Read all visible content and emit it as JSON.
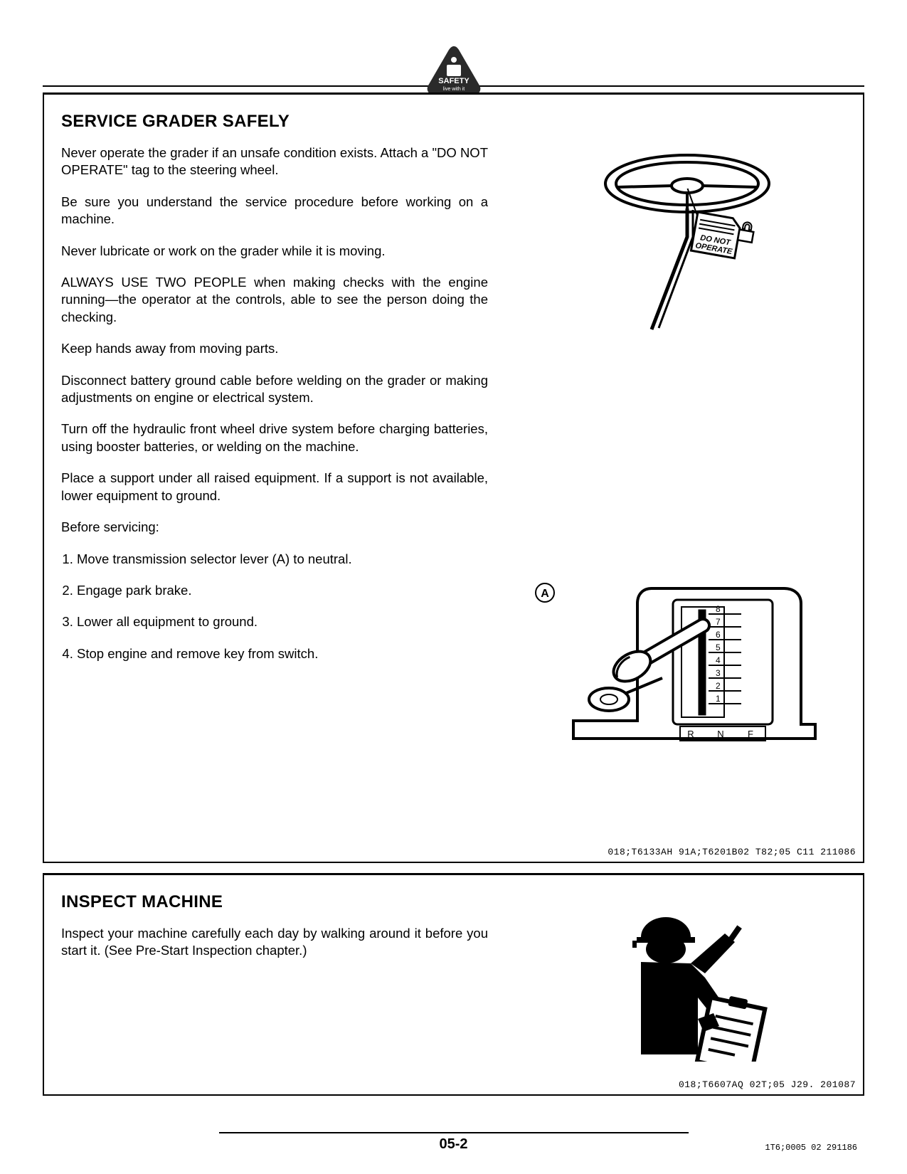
{
  "header": {
    "badge_label_top": "SAFETY",
    "badge_label_bottom": "live with it"
  },
  "section1": {
    "title": "SERVICE GRADER SAFELY",
    "p1": "Never operate the grader if an unsafe condition exists. Attach a \"DO NOT OPERATE\" tag to the steering wheel.",
    "p2": "Be sure you understand the service procedure before working on a machine.",
    "p3": "Never lubricate or work on the grader while it is moving.",
    "p4": "ALWAYS USE TWO PEOPLE when making checks with the engine running—the operator at the controls, able to see the person doing the checking.",
    "p5": "Keep hands away from moving parts.",
    "p6": "Disconnect battery ground cable before welding on the grader or making adjustments on engine or electrical system.",
    "p7": "Turn off the hydraulic front wheel drive system before charging batteries, using booster batteries, or welding on the machine.",
    "p8": "Place a support under all raised equipment. If a support is not available, lower equipment to ground.",
    "p9": "Before servicing:",
    "li1": "Move transmission selector lever (A) to neutral.",
    "li2": "Engage park brake.",
    "li3": "Lower all equipment to ground.",
    "li4": "Stop engine and remove key from switch.",
    "tag_line1": "DO NOT",
    "tag_line2": "OPERATE",
    "callout_a": "A",
    "gear_labels": [
      "8",
      "7",
      "6",
      "5",
      "4",
      "3",
      "2",
      "1"
    ],
    "shift_icons": [
      "R",
      "N",
      "F"
    ],
    "ref_code": "018;T6133AH  91A;T6201B02  T82;05  C11  211086"
  },
  "section2": {
    "title": "INSPECT MACHINE",
    "p1": "Inspect your machine carefully each day by walking around it before you start it. (See Pre-Start Inspection chapter.)",
    "ref_code": "018;T6607AQ  02T;05  J29.  201087"
  },
  "footer": {
    "page_number": "05-2",
    "code": "1T6;0005 02 291186"
  },
  "colors": {
    "text": "#000000",
    "background": "#ffffff",
    "rule": "#000000"
  }
}
